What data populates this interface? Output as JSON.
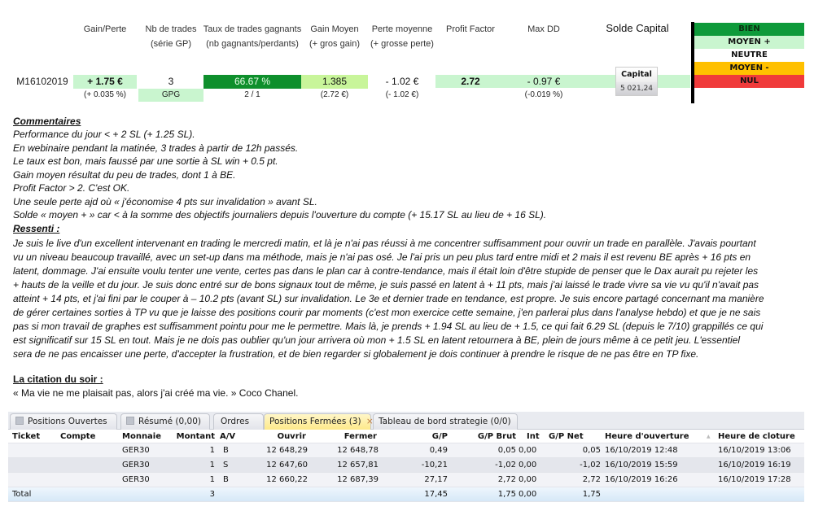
{
  "stats": {
    "headers": [
      {
        "l1": "Gain/Perte",
        "l2": ""
      },
      {
        "l1": "Nb de trades",
        "l2": "(série GP)"
      },
      {
        "l1": "Taux de trades gagnants",
        "l2": "(nb gagnants/perdants)"
      },
      {
        "l1": "Gain Moyen",
        "l2": "(+ gros gain)"
      },
      {
        "l1": "Perte moyenne",
        "l2": "(+ grosse perte)"
      },
      {
        "l1": "Profit Factor",
        "l2": ""
      },
      {
        "l1": "Max DD",
        "l2": ""
      }
    ],
    "solde_title": "Solde Capital",
    "row_label": "M16102019",
    "gain_perte": "+ 1.75 €",
    "gain_perte_pct": "(+ 0.035 %)",
    "nb_trades": "3",
    "serie": "GPG",
    "taux": "66.67 %",
    "ratio": "2 / 1",
    "gain_moyen": "1.385",
    "gros_gain": "(2.72 €)",
    "perte_moyenne": "- 1.02 €",
    "grosse_perte": "(- 1.02 €)",
    "profit_factor": "2.72",
    "max_dd": "- 0.97 €",
    "max_dd_pct": "(-0.019 %)",
    "capital_label": "Capital",
    "capital_value": "5 021,24"
  },
  "legend": [
    {
      "label": "BIEN",
      "color": "#0e9a3a"
    },
    {
      "label": "MOYEN +",
      "color": "#c9f5cf"
    },
    {
      "label": "NEUTRE",
      "color": "#ffffff"
    },
    {
      "label": "MOYEN -",
      "color": "#ffc000"
    },
    {
      "label": "NUL",
      "color": "#f03a3a"
    }
  ],
  "commentaires": {
    "title": "Commentaires",
    "lines": [
      "Performance du jour < + 2 SL (+ 1.25 SL).",
      "En webinaire pendant la matinée, 3 trades à partir de 12h passés.",
      "Le taux est bon, mais faussé par une sortie à SL win + 0.5 pt.",
      "Gain moyen résultat du peu de trades, dont 1 à BE.",
      "Profit Factor > 2. C'est OK.",
      "Une seule perte ajd où « j'économise 4 pts sur invalidation » avant SL.",
      "Solde « moyen + » car < à la somme des objectifs journaliers depuis l'ouverture du compte (+ 15.17 SL au lieu de + 16 SL)."
    ]
  },
  "ressenti": {
    "title": "Ressenti :",
    "lines": [
      "Je suis le live d'un excellent intervenant en trading le mercredi matin, et là je n'ai pas réussi à me concentrer suffisamment pour ouvrir un trade en parallèle. J'avais pourtant",
      "vu un niveau beaucoup travaillé, avec un set-up dans ma méthode, mais je n'ai pas osé. Je l'ai pris un peu plus tard entre midi et 2 mais il est revenu BE après + 16 pts en",
      "latent, dommage. J'ai ensuite voulu tenter une vente, certes pas dans le plan car à contre-tendance, mais il était loin d'être stupide de penser que le Dax aurait pu rejeter les",
      "+ hauts de la veille et du jour. Je suis donc entré sur de bons signaux tout de même, je suis passé en latent à + 11 pts, mais j'ai laissé le trade vivre sa vie vu qu'il n'avait pas",
      "atteint + 14 pts, et j'ai fini par le couper à – 10.2 pts (avant SL) sur invalidation. Le 3e et dernier trade en tendance, est propre. Je suis encore partagé concernant ma manière",
      "de gérer certaines sorties à TP vu que je laisse des positions courir par moments (c'est mon exercice cette semaine, j'en parlerai plus dans l'analyse hebdo) et que je ne sais",
      "pas si mon travail de graphes est suffisamment pointu pour me le permettre. Mais là, je prends + 1.94 SL au lieu de + 1.5, ce qui fait 6.29 SL (depuis le 7/10) grappillés ce qui",
      "est significatif sur 15 SL en tout. Mais je ne dois pas oublier qu'un jour arrivera où mon + 1.5 SL  en latent retournera à BE, plein de jours même à ce petit jeu. L'essentiel",
      "sera de ne pas encaisser une perte, d'accepter la frustration, et de bien regarder si globalement je dois continuer à prendre le risque de ne pas être en TP fixe."
    ]
  },
  "citation": {
    "title": "La citation du soir :",
    "text": "« Ma vie ne me plaisait pas, alors j'ai créé ma vie. » Coco Chanel."
  },
  "platform": {
    "tabs": [
      {
        "label": "Positions Ouvertes"
      },
      {
        "label": "Résumé (0,00)"
      },
      {
        "label": "Ordres"
      },
      {
        "label": "Positions Fermées (3)"
      },
      {
        "label": "Tableau de bord strategie (0/0)"
      }
    ],
    "close_glyph": "×",
    "sort_glyph": "▲",
    "columns": [
      "Ticket",
      "Compte",
      "Monnaie",
      "Montant",
      "A/V",
      "Ouvrir",
      "Fermer",
      "G/P",
      "G/P Brut",
      "Int",
      "G/P Net",
      "Heure d'ouverture",
      "Heure de cloture"
    ],
    "rows": [
      [
        "GER30",
        "1",
        "B",
        "12 648,29",
        "12 648,78",
        "0,49",
        "0,05",
        "0,00",
        "0,05",
        "16/10/2019 12:48",
        "16/10/2019 13:06"
      ],
      [
        "GER30",
        "1",
        "S",
        "12 647,60",
        "12 657,81",
        "-10,21",
        "-1,02",
        "0,00",
        "-1,02",
        "16/10/2019 15:59",
        "16/10/2019 16:19"
      ],
      [
        "GER30",
        "1",
        "B",
        "12 660,22",
        "12 687,39",
        "27,17",
        "2,72",
        "0,00",
        "2,72",
        "16/10/2019 16:26",
        "16/10/2019 17:28"
      ]
    ],
    "total": {
      "label": "Total",
      "montant": "3",
      "gp": "17,45",
      "gp_brut": "1,75",
      "int": "0,00",
      "gp_net": "1,75"
    }
  }
}
